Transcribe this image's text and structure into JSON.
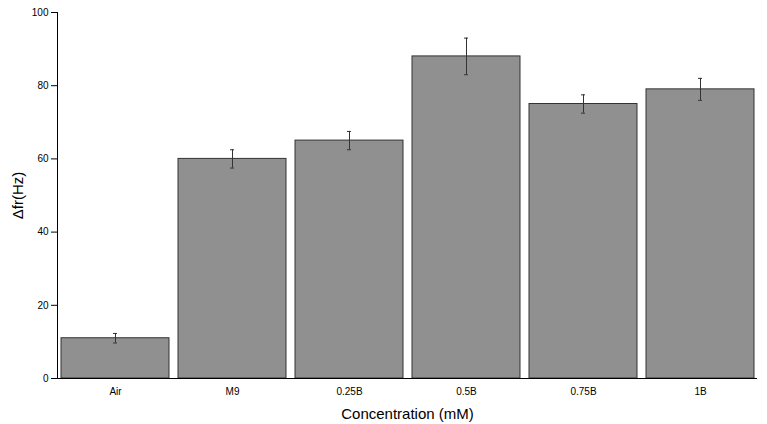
{
  "chart_data": {
    "type": "bar",
    "x_label": "Concentration (mM)",
    "y_label": "Δfr(Hz)",
    "categories": [
      "Air",
      "M9",
      "0.25B",
      "0.5B",
      "0.75B",
      "1B"
    ],
    "values": [
      11,
      60,
      65,
      88,
      75,
      79
    ],
    "errors": [
      1.3,
      2.5,
      2.5,
      5,
      2.5,
      3
    ],
    "color": "#909090",
    "ylim": [
      0,
      100
    ],
    "yticks": [
      0,
      20,
      40,
      60,
      80,
      100
    ],
    "grid": false
  }
}
